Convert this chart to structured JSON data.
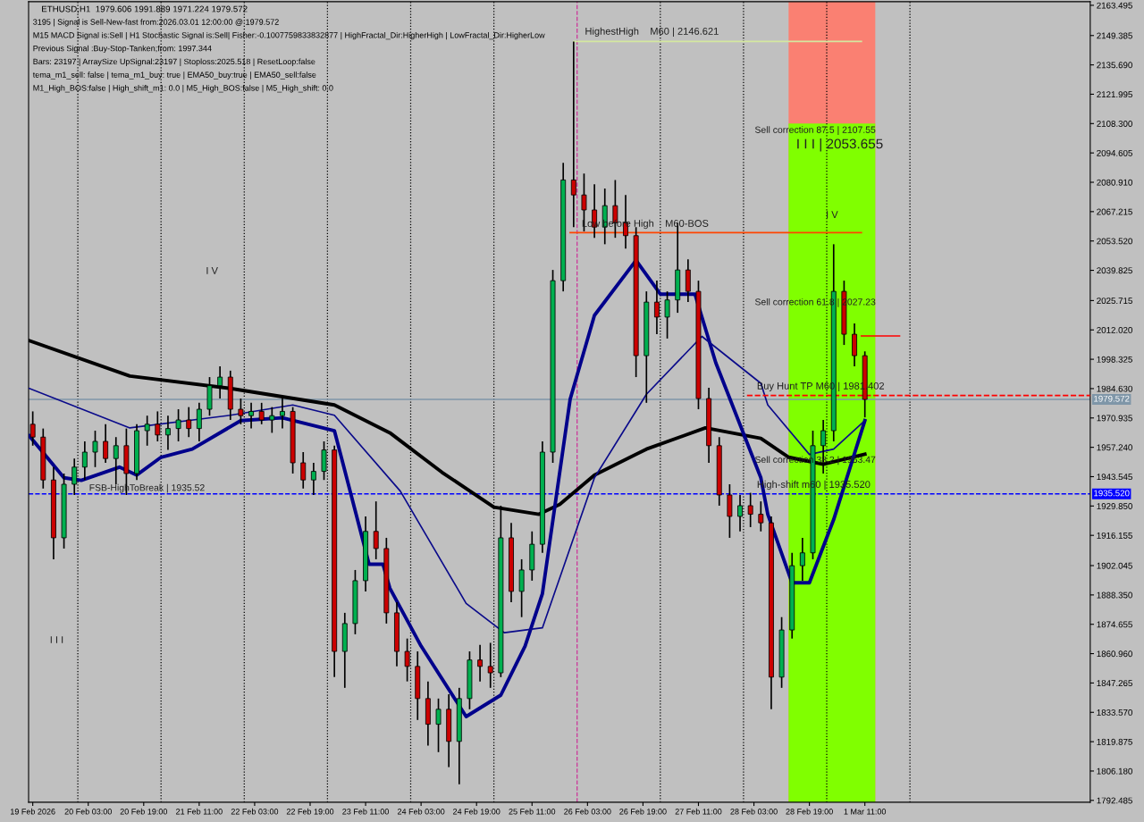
{
  "chart_data": {
    "type": "candlestick",
    "title": "ETHUSD,H1  1979.606 1991.889 1971.224 1979.572",
    "annotations": [
      "3195 | Signal is Sell-New-fast from:2026.03.01 12:00:00 @ 1979.572",
      "M15 MACD Signal is:Sell | H1 Stochastic Signal is:Sell| Fisher:-0.1007759833832877 | HighFractal_Dir:HigherHigh | LowFractal_Dir:HigherLow",
      "Previous Signal :Buy-Stop-Tanken;from: 1997.344",
      "Bars: 23197 | ArraySize UpSignal:23197 | Stoploss:2025.518 | ResetLoop:false",
      "tema_m1_sell: false | tema_m1_buy: true | EMA50_buy:true | EMA50_sell:false",
      "M1_High_BOS:false | High_shift_m1: 0.0 | M5_High_BOS:false | M5_High_shift: 0.0",
      "HighestHigh    M60 | 2146.621",
      "Low before High    M60-BOS",
      "Sell correction 87.5 | 2107.55",
      "I I I | 2053.655",
      "I V",
      "Sell correction 61.8 | 2027.23",
      "Buy Hunt TP M60 | 1981.402",
      "Sell correction 38.2 | 1953.47",
      "High-shift m60 | 1935.520",
      "FSB-HighToBreak | 1935.52",
      "I V",
      "I I I"
    ],
    "x": [
      "2026-02-19T11:00",
      "2026-02-19T14:00",
      "2026-02-19T17:00",
      "2026-02-19T20:00",
      "2026-02-19T23:00",
      "2026-02-20T02:00",
      "2026-02-20T05:00",
      "2026-02-20T08:00",
      "2026-02-20T11:00",
      "2026-02-20T14:00",
      "2026-02-20T17:00",
      "2026-02-20T20:00",
      "2026-02-20T23:00",
      "2026-02-21T02:00",
      "2026-02-21T05:00",
      "2026-02-21T08:00",
      "2026-02-21T11:00",
      "2026-02-21T14:00",
      "2026-02-21T17:00",
      "2026-02-21T20:00",
      "2026-02-21T23:00",
      "2026-02-22T02:00",
      "2026-02-22T05:00",
      "2026-02-22T08:00",
      "2026-02-22T11:00",
      "2026-02-22T14:00",
      "2026-02-22T17:00",
      "2026-02-22T20:00",
      "2026-02-22T23:00",
      "2026-02-23T02:00",
      "2026-02-23T05:00",
      "2026-02-23T08:00",
      "2026-02-23T11:00",
      "2026-02-23T14:00",
      "2026-02-23T17:00",
      "2026-02-23T20:00",
      "2026-02-23T23:00",
      "2026-02-24T02:00",
      "2026-02-24T05:00",
      "2026-02-24T08:00",
      "2026-02-24T11:00",
      "2026-02-24T14:00",
      "2026-02-24T17:00",
      "2026-02-24T20:00",
      "2026-02-24T23:00",
      "2026-02-25T02:00",
      "2026-02-25T05:00",
      "2026-02-25T08:00",
      "2026-02-25T11:00",
      "2026-02-25T14:00",
      "2026-02-25T17:00",
      "2026-02-25T20:00",
      "2026-02-25T23:00",
      "2026-02-26T02:00",
      "2026-02-26T05:00",
      "2026-02-26T08:00",
      "2026-02-26T11:00",
      "2026-02-26T14:00",
      "2026-02-26T17:00",
      "2026-02-26T20:00",
      "2026-02-26T23:00",
      "2026-02-27T02:00",
      "2026-02-27T05:00",
      "2026-02-27T08:00",
      "2026-02-27T11:00",
      "2026-02-27T14:00",
      "2026-02-27T17:00",
      "2026-02-27T20:00",
      "2026-02-27T23:00",
      "2026-02-28T02:00",
      "2026-02-28T05:00",
      "2026-02-28T08:00",
      "2026-02-28T11:00",
      "2026-02-28T14:00",
      "2026-02-28T17:00",
      "2026-02-28T20:00",
      "2026-02-28T23:00",
      "2026-03-01T02:00",
      "2026-03-01T05:00",
      "2026-03-01T08:00",
      "2026-03-01T11:00"
    ],
    "ohlc": [
      [
        1968,
        1974,
        1958,
        1962
      ],
      [
        1962,
        1966,
        1938,
        1942
      ],
      [
        1942,
        1948,
        1905,
        1915
      ],
      [
        1915,
        1945,
        1910,
        1940
      ],
      [
        1940,
        1952,
        1935,
        1948
      ],
      [
        1948,
        1960,
        1942,
        1955
      ],
      [
        1955,
        1965,
        1948,
        1960
      ],
      [
        1960,
        1968,
        1950,
        1952
      ],
      [
        1952,
        1962,
        1940,
        1958
      ],
      [
        1958,
        1966,
        1935,
        1945
      ],
      [
        1945,
        1968,
        1942,
        1965
      ],
      [
        1965,
        1972,
        1958,
        1968
      ],
      [
        1968,
        1974,
        1960,
        1963
      ],
      [
        1963,
        1972,
        1956,
        1966
      ],
      [
        1966,
        1975,
        1960,
        1970
      ],
      [
        1970,
        1976,
        1962,
        1966
      ],
      [
        1966,
        1978,
        1960,
        1975
      ],
      [
        1975,
        1990,
        1972,
        1986
      ],
      [
        1986,
        1995,
        1980,
        1990
      ],
      [
        1990,
        1993,
        1970,
        1975
      ],
      [
        1975,
        1980,
        1968,
        1972
      ],
      [
        1972,
        1978,
        1966,
        1974
      ],
      [
        1974,
        1978,
        1968,
        1970
      ],
      [
        1970,
        1976,
        1964,
        1972
      ],
      [
        1972,
        1980,
        1966,
        1974
      ],
      [
        1974,
        1976,
        1945,
        1950
      ],
      [
        1950,
        1955,
        1938,
        1942
      ],
      [
        1942,
        1950,
        1935,
        1946
      ],
      [
        1946,
        1960,
        1942,
        1956
      ],
      [
        1956,
        1958,
        1850,
        1862
      ],
      [
        1862,
        1880,
        1845,
        1875
      ],
      [
        1875,
        1900,
        1870,
        1895
      ],
      [
        1895,
        1925,
        1890,
        1918
      ],
      [
        1918,
        1932,
        1905,
        1910
      ],
      [
        1910,
        1915,
        1875,
        1880
      ],
      [
        1880,
        1885,
        1855,
        1862
      ],
      [
        1862,
        1868,
        1848,
        1855
      ],
      [
        1855,
        1862,
        1830,
        1840
      ],
      [
        1840,
        1848,
        1818,
        1828
      ],
      [
        1828,
        1840,
        1815,
        1835
      ],
      [
        1835,
        1842,
        1808,
        1820
      ],
      [
        1820,
        1845,
        1800,
        1840
      ],
      [
        1840,
        1862,
        1835,
        1858
      ],
      [
        1858,
        1865,
        1848,
        1855
      ],
      [
        1855,
        1866,
        1845,
        1852
      ],
      [
        1852,
        1930,
        1850,
        1915
      ],
      [
        1915,
        1922,
        1885,
        1890
      ],
      [
        1890,
        1905,
        1878,
        1900
      ],
      [
        1900,
        1918,
        1895,
        1912
      ],
      [
        1912,
        1960,
        1908,
        1955
      ],
      [
        1955,
        2040,
        1950,
        2035
      ],
      [
        2035,
        2090,
        2030,
        2082
      ],
      [
        2082,
        2146.6,
        2060,
        2075
      ],
      [
        2075,
        2085,
        2058,
        2068
      ],
      [
        2068,
        2080,
        2055,
        2060
      ],
      [
        2060,
        2078,
        2052,
        2070
      ],
      [
        2070,
        2082,
        2055,
        2062
      ],
      [
        2062,
        2075,
        2050,
        2056
      ],
      [
        2056,
        2060,
        1990,
        2000
      ],
      [
        2000,
        2030,
        1978,
        2025
      ],
      [
        2025,
        2035,
        2010,
        2018
      ],
      [
        2018,
        2030,
        2008,
        2026
      ],
      [
        2026,
        2062,
        2020,
        2040
      ],
      [
        2040,
        2045,
        2025,
        2030
      ],
      [
        2030,
        2035,
        1975,
        1980
      ],
      [
        1980,
        1985,
        1950,
        1958
      ],
      [
        1958,
        1962,
        1930,
        1935
      ],
      [
        1935,
        1940,
        1915,
        1925
      ],
      [
        1925,
        1935,
        1918,
        1930
      ],
      [
        1930,
        1936,
        1920,
        1926
      ],
      [
        1926,
        1932,
        1918,
        1922
      ],
      [
        1922,
        1925,
        1835,
        1850
      ],
      [
        1850,
        1878,
        1845,
        1872
      ],
      [
        1872,
        1908,
        1868,
        1902
      ],
      [
        1902,
        1915,
        1895,
        1908
      ],
      [
        1908,
        1965,
        1905,
        1958
      ],
      [
        1958,
        1970,
        1945,
        1965
      ],
      [
        1965,
        2052,
        1960,
        2030
      ],
      [
        2030,
        2035,
        2005,
        2010
      ],
      [
        2010,
        2015,
        1995,
        2000
      ],
      [
        2000,
        2002,
        1971.2,
        1979.6
      ]
    ],
    "series": [
      {
        "type": "area",
        "color": "#80ff00",
        "x": [
          "2026-02-28T13:00",
          "2026-03-01T14:00"
        ],
        "values": [
          2108.3,
          2108.3
        ]
      },
      {
        "type": "line",
        "color": "#000000",
        "x": [
          "2026-02-19T10:00",
          "2026-02-20T15:00",
          "2026-02-21T20:00",
          "2026-02-23T02:00",
          "2026-02-23T18:00",
          "2026-02-24T09:00",
          "2026-02-25T00:00",
          "2026-02-25T13:00",
          "2026-02-25T19:00",
          "2026-02-26T05:00",
          "2026-02-26T20:00",
          "2026-02-27T13:00",
          "2026-02-28T05:00",
          "2026-02-28T13:00",
          "2026-02-28T23:00",
          "2026-03-01T11:00"
        ],
        "values": [
          2007,
          1990.5,
          1984.7,
          1977,
          1964,
          1945.6,
          1929.3,
          1926,
          1930.6,
          1944.3,
          1956.4,
          1966.3,
          1961.4,
          1952.6,
          1949.3,
          1954
        ]
      },
      {
        "type": "line",
        "color": "#00008b",
        "x": [
          "2026-02-19T10:00",
          "2026-02-19T20:00",
          "2026-02-20T01:00",
          "2026-02-20T12:00",
          "2026-02-20T17:00",
          "2026-02-21T00:00",
          "2026-02-21T09:00",
          "2026-02-21T23:00",
          "2026-02-22T11:00",
          "2026-02-23T02:00",
          "2026-02-23T04:00",
          "2026-02-23T12:00",
          "2026-02-23T16:00",
          "2026-02-23T18:00",
          "2026-02-24T03:00",
          "2026-02-24T16:00",
          "2026-02-25T02:00",
          "2026-02-25T09:00",
          "2026-02-25T14:00",
          "2026-02-25T22:00",
          "2026-02-26T05:00",
          "2026-02-26T17:00",
          "2026-02-27T00:00",
          "2026-02-27T10:00",
          "2026-02-27T16:00",
          "2026-02-28T05:00",
          "2026-02-28T07:00",
          "2026-02-28T14:00",
          "2026-02-28T19:00",
          "2026-03-01T02:00",
          "2026-03-01T11:00"
        ],
        "values": [
          1962.6,
          1943,
          1941.8,
          1948,
          1944.3,
          1952.6,
          1956.4,
          1969.7,
          1971,
          1965,
          1952.6,
          1902.7,
          1902.7,
          1891.5,
          1864.5,
          1831.6,
          1841.6,
          1864.5,
          1889,
          1979.7,
          2018.8,
          2044.5,
          2028.7,
          2028.7,
          1996.7,
          1943,
          1926,
          1894,
          1894,
          1923.5,
          1969.7
        ]
      },
      {
        "type": "line",
        "color": "#0a0a8a",
        "x": [
          "2026-02-19T10:00",
          "2026-02-20T15:00",
          "2026-02-21T20:00",
          "2026-02-22T14:00",
          "2026-02-23T02:00",
          "2026-02-23T21:00",
          "2026-02-24T16:00",
          "2026-02-25T03:00",
          "2026-02-25T14:00",
          "2026-02-26T05:00",
          "2026-02-26T20:00",
          "2026-02-27T12:00",
          "2026-02-28T05:00",
          "2026-02-28T07:00",
          "2026-02-28T19:00",
          "2026-03-01T02:00",
          "2026-03-01T11:00"
        ],
        "values": [
          1984.7,
          1966.3,
          1972.2,
          1977,
          1972.2,
          1936.8,
          1884.4,
          1870.7,
          1873,
          1943,
          1982,
          2009,
          1987.1,
          1977,
          1953.9,
          1956.4,
          1969.7
        ]
      },
      {
        "type": "line",
        "color": "#d4e8a0",
        "x": [
          "2026-02-25T23:00",
          "2026-03-01T10:00"
        ],
        "values": [
          2146.6,
          2146.6
        ]
      },
      {
        "type": "line",
        "color": "#ff4500",
        "x": [
          "2026-02-25T22:00",
          "2026-03-01T10:00"
        ],
        "values": [
          2057.4,
          2057.4
        ]
      },
      {
        "type": "line",
        "color": "#ff0000",
        "x": [
          "2026-03-01T10:00",
          "2026-03-01T21:00"
        ],
        "values": [
          2009.2,
          2009.2
        ]
      },
      {
        "type": "line",
        "color": "#ff0000",
        "line_style": "dashed",
        "x": [
          "2026-02-28T01:00",
          "2026-03-04T04:00"
        ],
        "values": [
          1981.4,
          1981.4
        ]
      }
    ],
    "bands": [
      {
        "axis": "x",
        "from": "2026-02-28T13:00",
        "to": "2026-03-01T14:00",
        "color": "#fa8072"
      }
    ],
    "ref_lines": [
      {
        "axis": "y",
        "value": 1979.572,
        "label": "1979.572",
        "color": "#7f96a8"
      },
      {
        "axis": "y",
        "value": 1935.52,
        "label": "1935.520",
        "color": "#0000ff",
        "line_style": "dashed"
      },
      {
        "axis": "x",
        "value": "2026-02-20",
        "color": "#000000",
        "line_style": "dotted"
      },
      {
        "axis": "x",
        "value": "2026-02-21",
        "color": "#000000",
        "line_style": "dotted"
      },
      {
        "axis": "x",
        "value": "2026-02-22",
        "color": "#000000",
        "line_style": "dotted"
      },
      {
        "axis": "x",
        "value": "2026-02-23",
        "color": "#000000",
        "line_style": "dotted"
      },
      {
        "axis": "x",
        "value": "2026-02-24",
        "color": "#000000",
        "line_style": "dotted"
      },
      {
        "axis": "x",
        "value": "2026-02-25",
        "color": "#000000",
        "line_style": "dotted"
      },
      {
        "axis": "x",
        "value": "2026-02-26",
        "color": "#cc3399",
        "line_style": "dashed"
      },
      {
        "axis": "x",
        "value": "2026-02-27",
        "color": "#000000",
        "line_style": "dotted"
      },
      {
        "axis": "x",
        "value": "2026-02-28",
        "color": "#000000",
        "line_style": "dotted"
      },
      {
        "axis": "x",
        "value": "2026-03-01",
        "color": "#000000",
        "line_style": "dotted"
      },
      {
        "axis": "x",
        "value": "2026-03-02",
        "color": "#000000",
        "line_style": "dotted"
      }
    ],
    "xlim": [
      "2026-02-19T09:48",
      "2026-03-04T04:00"
    ],
    "ylim": [
      1791.6,
      2165.2
    ],
    "xticks": [
      {
        "value": "2026-02-19T11:00",
        "label": "19 Feb 2026"
      },
      {
        "value": "2026-02-20T03:00",
        "label": "20 Feb 03:00"
      },
      {
        "value": "2026-02-20T19:00",
        "label": "20 Feb 19:00"
      },
      {
        "value": "2026-02-21T11:00",
        "label": "21 Feb 11:00"
      },
      {
        "value": "2026-02-22T03:00",
        "label": "22 Feb 03:00"
      },
      {
        "value": "2026-02-22T19:00",
        "label": "22 Feb 19:00"
      },
      {
        "value": "2026-02-23T11:00",
        "label": "23 Feb 11:00"
      },
      {
        "value": "2026-02-24T03:00",
        "label": "24 Feb 03:00"
      },
      {
        "value": "2026-02-24T19:00",
        "label": "24 Feb 19:00"
      },
      {
        "value": "2026-02-25T11:00",
        "label": "25 Feb 11:00"
      },
      {
        "value": "2026-02-26T03:00",
        "label": "26 Feb 03:00"
      },
      {
        "value": "2026-02-26T19:00",
        "label": "26 Feb 19:00"
      },
      {
        "value": "2026-02-27T11:00",
        "label": "27 Feb 11:00"
      },
      {
        "value": "2026-02-28T03:00",
        "label": "28 Feb 03:00"
      },
      {
        "value": "2026-02-28T19:00",
        "label": "28 Feb 19:00"
      },
      {
        "value": "2026-03-01T11:00",
        "label": "1 Mar 11:00"
      }
    ],
    "yticks": [
      {
        "value": 2163.495,
        "label": "2163.495"
      },
      {
        "value": 2149.385,
        "label": "2149.385"
      },
      {
        "value": 2135.69,
        "label": "2135.690"
      },
      {
        "value": 2121.995,
        "label": "2121.995"
      },
      {
        "value": 2108.3,
        "label": "2108.300"
      },
      {
        "value": 2094.605,
        "label": "2094.605"
      },
      {
        "value": 2080.91,
        "label": "2080.910"
      },
      {
        "value": 2067.215,
        "label": "2067.215"
      },
      {
        "value": 2053.52,
        "label": "2053.520"
      },
      {
        "value": 2039.825,
        "label": "2039.825"
      },
      {
        "value": 2025.715,
        "label": "2025.715"
      },
      {
        "value": 2012.02,
        "label": "2012.020"
      },
      {
        "value": 1998.325,
        "label": "1998.325"
      },
      {
        "value": 1984.63,
        "label": "1984.630"
      },
      {
        "value": 1970.935,
        "label": "1970.935"
      },
      {
        "value": 1957.24,
        "label": "1957.240"
      },
      {
        "value": 1943.545,
        "label": "1943.545"
      },
      {
        "value": 1929.85,
        "label": "1929.850"
      },
      {
        "value": 1916.155,
        "label": "1916.155"
      },
      {
        "value": 1902.045,
        "label": "1902.045"
      },
      {
        "value": 1888.35,
        "label": "1888.350"
      },
      {
        "value": 1874.655,
        "label": "1874.655"
      },
      {
        "value": 1860.96,
        "label": "1860.960"
      },
      {
        "value": 1847.265,
        "label": "1847.265"
      },
      {
        "value": 1833.57,
        "label": "1833.570"
      },
      {
        "value": 1819.875,
        "label": "1819.875"
      },
      {
        "value": 1806.18,
        "label": "1806.180"
      },
      {
        "value": 1792.485,
        "label": "1792.485"
      }
    ]
  }
}
